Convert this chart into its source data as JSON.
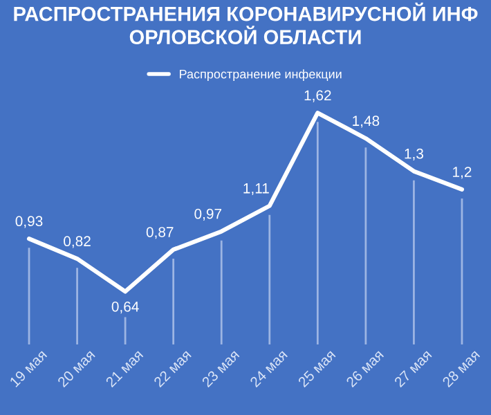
{
  "chart_data": {
    "type": "line",
    "title": "РАСПРОСТРАНЕНИЯ КОРОНАВИРУСНОЙ ИНФ\nОРЛОВСКОЙ ОБЛАСТИ",
    "categories": [
      "19 мая",
      "20 мая",
      "21 мая",
      "22 мая",
      "23 мая",
      "24 мая",
      "25 мая",
      "26 мая",
      "27 мая",
      "28 мая"
    ],
    "series": [
      {
        "name": "Распространение инфекции",
        "color": "#ffffff",
        "values": [
          0.93,
          0.82,
          0.64,
          0.87,
          0.97,
          1.11,
          1.62,
          1.48,
          1.3,
          1.2
        ],
        "value_labels": [
          "0,93",
          "0,82",
          "0,64",
          "0,87",
          "0,97",
          "1,11",
          "1,62",
          "1,48",
          "1,3",
          "1,2"
        ]
      }
    ],
    "legend": "top",
    "grid": "x",
    "marker": "none",
    "line_style": "solid"
  }
}
